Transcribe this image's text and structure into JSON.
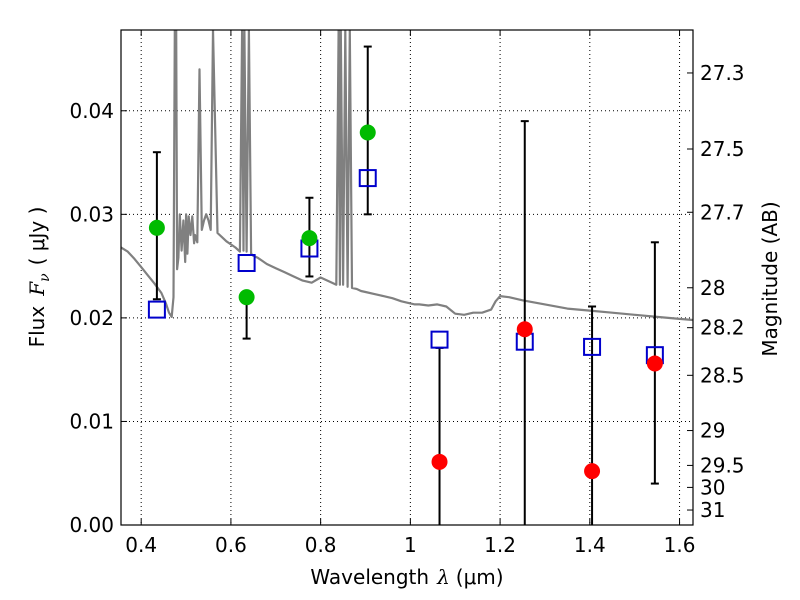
{
  "chart_data": {
    "type": "scatter",
    "x_axis": {
      "label": "Wavelength",
      "symbol": "λ",
      "unit": "(μm)",
      "range": [
        0.355,
        1.63
      ],
      "ticks": [
        0.4,
        0.6,
        0.8,
        1.0,
        1.2,
        1.4,
        1.6
      ],
      "tick_labels": [
        "0.4",
        "0.6",
        "0.8",
        "1",
        "1.2",
        "1.4",
        "1.6"
      ]
    },
    "y_axis": {
      "label": "Flux",
      "symbol": "F",
      "symbol_sub": "ν",
      "unit": "( μJy )",
      "range": [
        0.0,
        0.0478
      ],
      "ticks": [
        0.0,
        0.01,
        0.02,
        0.03,
        0.04
      ],
      "tick_labels": [
        "0.00",
        "0.01",
        "0.02",
        "0.03",
        "0.04"
      ]
    },
    "y2_axis": {
      "label": "Magnitude (AB)",
      "ticks": [
        {
          "value": 27.3,
          "label": "27.3"
        },
        {
          "value": 27.5,
          "label": "27.5"
        },
        {
          "value": 27.7,
          "label": "27.7"
        },
        {
          "value": 28.0,
          "label": "28"
        },
        {
          "value": 28.2,
          "label": "28.2"
        },
        {
          "value": 28.5,
          "label": "28.5"
        },
        {
          "value": 29.0,
          "label": "29"
        },
        {
          "value": 29.5,
          "label": "29.5"
        },
        {
          "value": 30.0,
          "label": "30"
        },
        {
          "value": 31.0,
          "label": "31"
        }
      ]
    },
    "grid": true,
    "series": [
      {
        "kind": "model_spectrum",
        "color": "#808080",
        "x": [
          0.355,
          0.37,
          0.385,
          0.4,
          0.415,
          0.43,
          0.445,
          0.455,
          0.462,
          0.468,
          0.472,
          0.475,
          0.478,
          0.48,
          0.483,
          0.486,
          0.49,
          0.494,
          0.498,
          0.5,
          0.503,
          0.506,
          0.51,
          0.514,
          0.518,
          0.52,
          0.525,
          0.53,
          0.535,
          0.54,
          0.545,
          0.55,
          0.555,
          0.56,
          0.57,
          0.58,
          0.59,
          0.6,
          0.61,
          0.62,
          0.625,
          0.628,
          0.63,
          0.635,
          0.64,
          0.645,
          0.65,
          0.66,
          0.67,
          0.68,
          0.7,
          0.72,
          0.74,
          0.76,
          0.78,
          0.8,
          0.82,
          0.835,
          0.84,
          0.843,
          0.845,
          0.85,
          0.855,
          0.86,
          0.865,
          0.87,
          0.88,
          0.89,
          0.9,
          0.92,
          0.94,
          0.96,
          0.98,
          1.0,
          1.01,
          1.02,
          1.04,
          1.06,
          1.08,
          1.1,
          1.12,
          1.14,
          1.16,
          1.18,
          1.19,
          1.2,
          1.22,
          1.25,
          1.3,
          1.35,
          1.4,
          1.45,
          1.5,
          1.55,
          1.6,
          1.63
        ],
        "y": [
          0.0268,
          0.0264,
          0.0257,
          0.0249,
          0.0241,
          0.0233,
          0.0224,
          0.0214,
          0.0205,
          0.0201,
          0.022,
          0.0478,
          0.0478,
          0.0247,
          0.0258,
          0.03,
          0.0265,
          0.0294,
          0.0254,
          0.03,
          0.0262,
          0.0298,
          0.028,
          0.0298,
          0.0272,
          0.028,
          0.0273,
          0.044,
          0.0285,
          0.0294,
          0.03,
          0.0294,
          0.0285,
          0.0478,
          0.0282,
          0.0278,
          0.0274,
          0.0271,
          0.0268,
          0.0264,
          0.0478,
          0.0265,
          0.0478,
          0.0264,
          0.0478,
          0.0262,
          0.026,
          0.0258,
          0.0255,
          0.0252,
          0.0248,
          0.0244,
          0.024,
          0.0236,
          0.0234,
          0.0239,
          0.0235,
          0.0232,
          0.0478,
          0.0232,
          0.0478,
          0.0232,
          0.0478,
          0.023,
          0.0478,
          0.0229,
          0.0228,
          0.0226,
          0.0225,
          0.0223,
          0.0221,
          0.0219,
          0.0216,
          0.0214,
          0.0213,
          0.0213,
          0.0212,
          0.0213,
          0.0211,
          0.0204,
          0.0203,
          0.0205,
          0.0205,
          0.0208,
          0.0216,
          0.0221,
          0.022,
          0.0217,
          0.0213,
          0.0209,
          0.0207,
          0.0205,
          0.0203,
          0.0201,
          0.0199,
          0.0198
        ]
      },
      {
        "kind": "model_photometry",
        "marker": "open-square",
        "color": "#0000cc",
        "x": [
          0.435,
          0.635,
          0.775,
          0.905,
          1.065,
          1.255,
          1.405,
          1.545
        ],
        "y": [
          0.0208,
          0.0253,
          0.0267,
          0.0335,
          0.0179,
          0.0177,
          0.0172,
          0.0164
        ]
      },
      {
        "kind": "observed_detections",
        "marker": "filled-circle",
        "color": "#00bb00",
        "x": [
          0.435,
          0.635,
          0.775,
          0.905
        ],
        "y": [
          0.0287,
          0.022,
          0.0277,
          0.0379
        ],
        "error_low": [
          0.0218,
          0.018,
          0.024,
          0.03
        ],
        "error_high": [
          0.036,
          0.022,
          0.0316,
          0.0462
        ]
      },
      {
        "kind": "observed_upper_limits",
        "marker": "filled-circle",
        "color": "#ff0000",
        "x": [
          1.065,
          1.255,
          1.405,
          1.545
        ],
        "y": [
          0.0061,
          0.0189,
          0.0052,
          0.0156
        ],
        "error_low": [
          0.0,
          0.0,
          0.0,
          0.004
        ],
        "error_high": [
          0.0171,
          0.039,
          0.0211,
          0.0273
        ]
      }
    ]
  }
}
